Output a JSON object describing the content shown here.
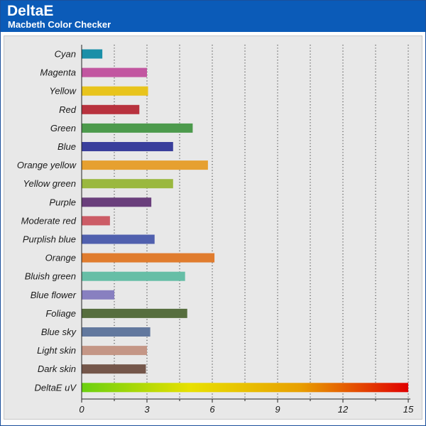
{
  "header": {
    "title": "DeltaE",
    "subtitle": "Macbeth Color Checker"
  },
  "chart_data": {
    "type": "bar",
    "orientation": "horizontal",
    "title": "DeltaE",
    "subtitle": "Macbeth Color Checker",
    "xlabel": "",
    "ylabel": "",
    "xlim": [
      0,
      15
    ],
    "x_ticks": [
      0,
      3,
      6,
      9,
      12,
      15
    ],
    "grid": "vertical-dotted",
    "legend": "none",
    "categories": [
      "Cyan",
      "Magenta",
      "Yellow",
      "Red",
      "Green",
      "Blue",
      "Orange yellow",
      "Yellow green",
      "Purple",
      "Moderate red",
      "Purplish blue",
      "Orange",
      "Bluish green",
      "Blue flower",
      "Foliage",
      "Blue sky",
      "Light skin",
      "Dark skin",
      "DeltaE uV"
    ],
    "values": [
      0.95,
      3.0,
      3.05,
      2.65,
      5.1,
      4.2,
      5.8,
      4.2,
      3.2,
      1.3,
      3.35,
      6.1,
      4.75,
      1.5,
      4.85,
      3.15,
      3.0,
      2.95,
      15.0
    ],
    "colors": [
      "#1a8fa8",
      "#c256a0",
      "#e8c41c",
      "#b8323e",
      "#4c9a4c",
      "#3a3f9c",
      "#e6a030",
      "#9ab83e",
      "#6a3f7c",
      "#cc5c66",
      "#5060ae",
      "#e07c2e",
      "#66bea6",
      "#8880c0",
      "#566e3e",
      "#62789e",
      "#c49686",
      "#74564a",
      "gradient"
    ],
    "gradient_colors": [
      "#6ad010",
      "#e8e000",
      "#e8a000",
      "#e00000"
    ]
  }
}
